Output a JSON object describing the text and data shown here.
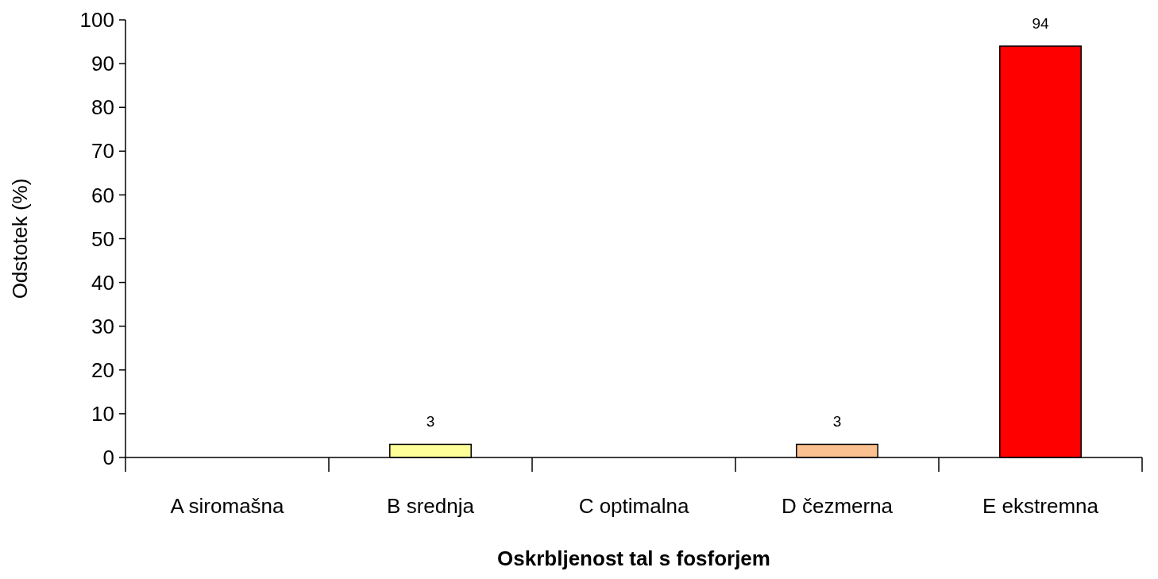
{
  "chart_data": {
    "type": "bar",
    "xlabel": "Oskrbljenost tal s fosforjem",
    "ylabel": "Odstotek (%)",
    "categories": [
      "A siromašna",
      "B srednja",
      "C optimalna",
      "D čezmerna",
      "E ekstremna"
    ],
    "values": [
      0,
      3,
      0,
      3,
      94
    ],
    "colors": [
      "#ffffff",
      "#ffff99",
      "#ffffff",
      "#fac090",
      "#ff0000"
    ],
    "value_labels": [
      null,
      "3",
      null,
      "3",
      "94"
    ],
    "ylim": [
      0,
      100
    ],
    "yticks": [
      0,
      10,
      20,
      30,
      40,
      50,
      60,
      70,
      80,
      90,
      100
    ],
    "grid": false
  }
}
